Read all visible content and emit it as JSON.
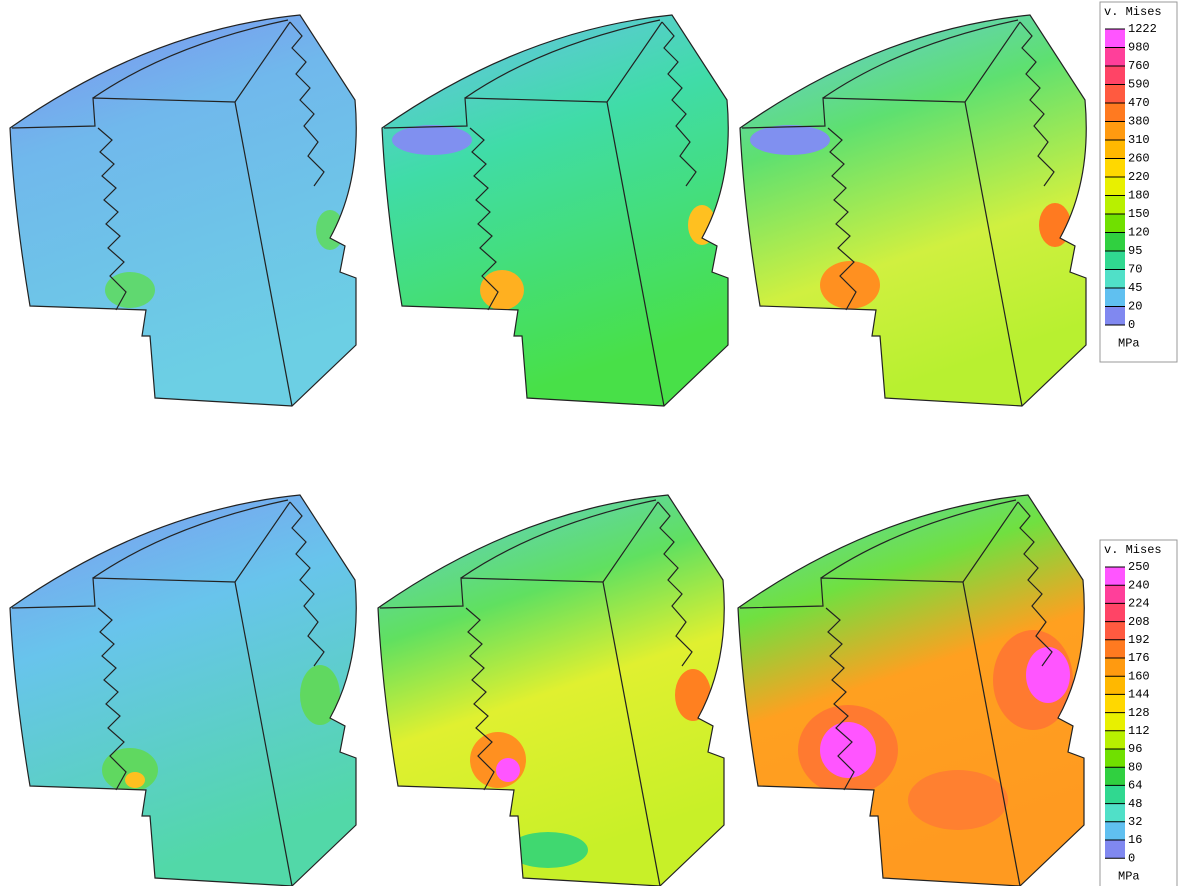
{
  "legends": [
    {
      "title": "v. Mises",
      "labels": [
        "1222",
        "980",
        "760",
        "590",
        "470",
        "380",
        "310",
        "260",
        "220",
        "180",
        "150",
        "120",
        "95",
        "70",
        "45",
        "20",
        "0"
      ],
      "unit": "MPa",
      "colors": [
        "#ff55ff",
        "#ff3f9a",
        "#ff4466",
        "#ff5a40",
        "#ff7a20",
        "#ff9a10",
        "#ffb800",
        "#ffd800",
        "#e8f000",
        "#b8f000",
        "#70e000",
        "#30d040",
        "#30d890",
        "#50e0c8",
        "#60c0f0",
        "#8088f0"
      ]
    },
    {
      "title": "v. Mises",
      "labels": [
        "250",
        "240",
        "224",
        "208",
        "192",
        "176",
        "160",
        "144",
        "128",
        "112",
        "96",
        "80",
        "64",
        "48",
        "32",
        "16",
        "0"
      ],
      "unit": "MPa",
      "colors": [
        "#ff55ff",
        "#ff3f9a",
        "#ff4466",
        "#ff5a40",
        "#ff7a20",
        "#ff9a10",
        "#ffb800",
        "#ffd800",
        "#e8f000",
        "#b8f000",
        "#70e000",
        "#30d040",
        "#30d890",
        "#50e0c8",
        "#60c0f0",
        "#8088f0"
      ]
    }
  ]
}
